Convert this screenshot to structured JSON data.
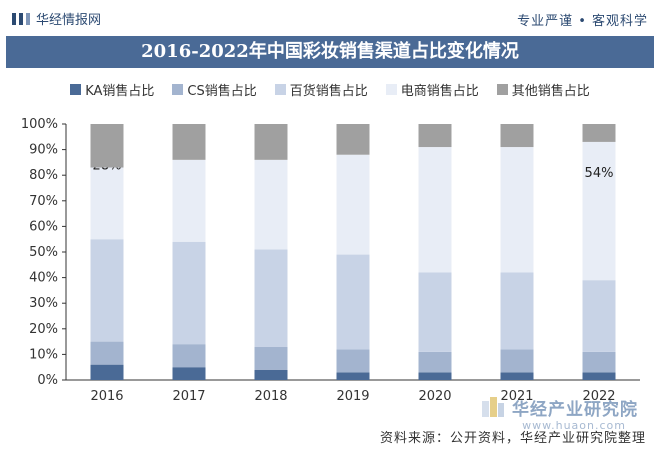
{
  "header": {
    "brand": "华经情报网",
    "slogan": "专业严谨 • 客观科学"
  },
  "chart_data": {
    "type": "bar",
    "stacked": true,
    "title": "2016-2022年中国彩妆销售渠道占比变化情况",
    "categories": [
      "2016",
      "2017",
      "2018",
      "2019",
      "2020",
      "2021",
      "2022"
    ],
    "ylim": [
      0,
      100
    ],
    "yticks": [
      "0%",
      "10%",
      "20%",
      "30%",
      "40%",
      "50%",
      "60%",
      "70%",
      "80%",
      "90%",
      "100%"
    ],
    "legend_position": "top",
    "grid": false,
    "series": [
      {
        "name": "KA销售占比",
        "color": "#4a6a96",
        "values": [
          6,
          5,
          4,
          3,
          3,
          3,
          3
        ]
      },
      {
        "name": "CS销售占比",
        "color": "#a3b4cf",
        "values": [
          9,
          9,
          9,
          9,
          8,
          9,
          8
        ]
      },
      {
        "name": "百货销售占比",
        "color": "#c8d3e6",
        "values": [
          40,
          40,
          38,
          37,
          31,
          30,
          28
        ]
      },
      {
        "name": "电商销售占比",
        "color": "#e8edf6",
        "values": [
          28,
          32,
          35,
          39,
          49,
          49,
          54
        ]
      },
      {
        "name": "其他销售占比",
        "color": "#a0a0a0",
        "values": [
          17,
          14,
          14,
          12,
          9,
          9,
          7
        ]
      }
    ],
    "annotations": [
      {
        "category": "2016",
        "series": "电商销售占比",
        "text": "28%"
      },
      {
        "category": "2022",
        "series": "电商销售占比",
        "text": "54%"
      }
    ]
  },
  "watermark": {
    "name": "华经产业研究院",
    "url": "www.huaon.com"
  },
  "footer": {
    "source": "资料来源：公开资料，华经产业研究院整理"
  }
}
